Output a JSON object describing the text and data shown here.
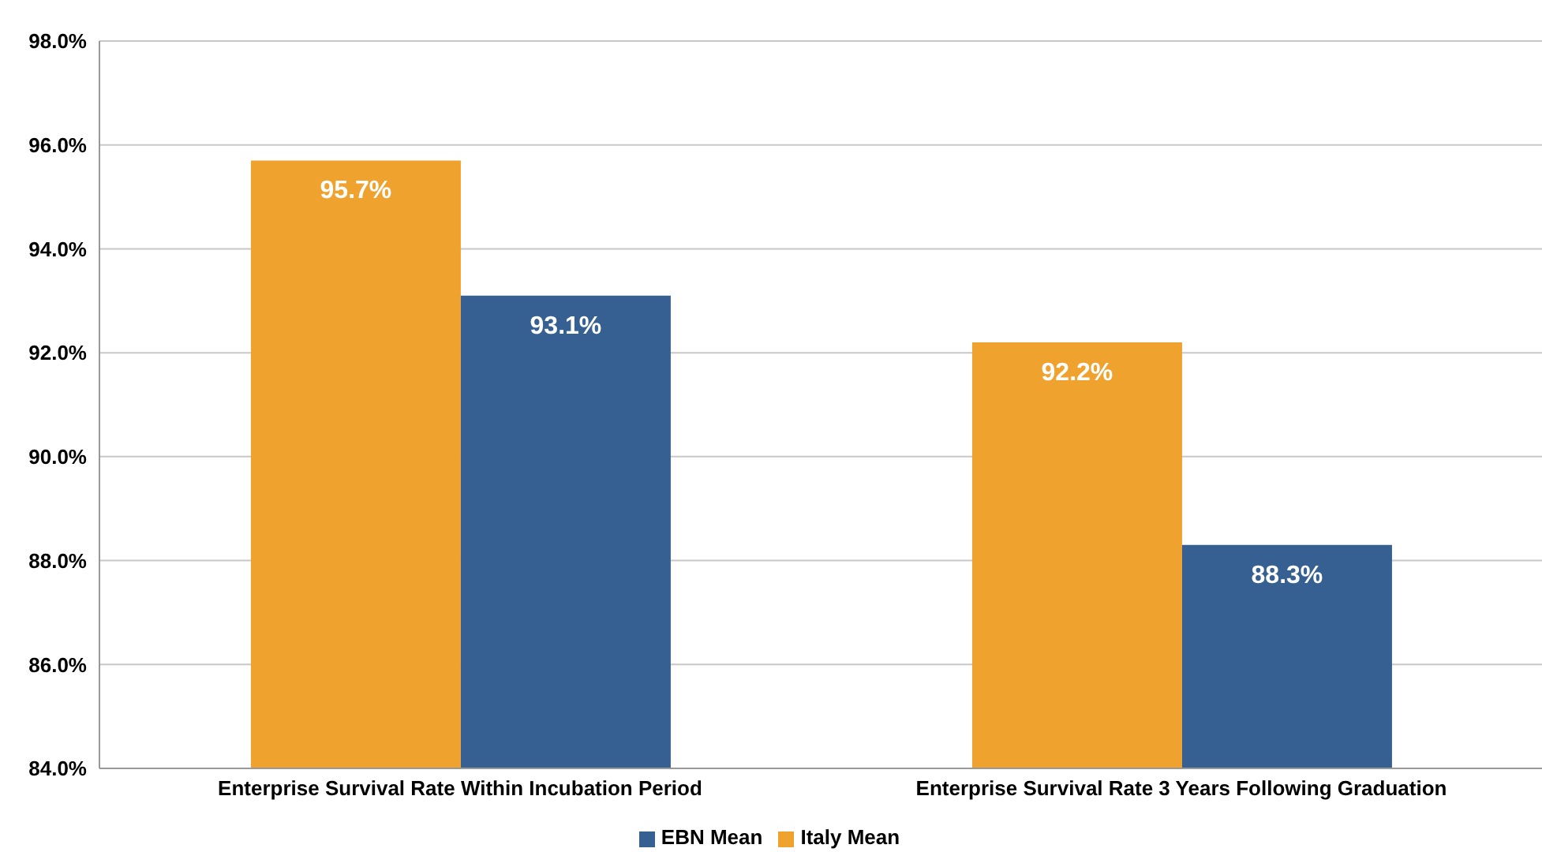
{
  "chart_data": {
    "type": "bar",
    "categories": [
      "Enterprise Survival Rate Within Incubation Period",
      "Enterprise Survival Rate 3 Years Following Graduation"
    ],
    "series": [
      {
        "name": "Italy Mean",
        "color": "#f0a22e",
        "values": [
          95.7,
          92.2
        ],
        "value_labels": [
          "95.7%",
          "92.2%"
        ]
      },
      {
        "name": "EBN Mean",
        "color": "#376092",
        "values": [
          93.1,
          88.3
        ],
        "value_labels": [
          "93.1%",
          "88.3%"
        ]
      }
    ],
    "ylim": [
      84,
      98
    ],
    "yticks": [
      {
        "value": 84,
        "label": "84.0%"
      },
      {
        "value": 86,
        "label": "86.0%"
      },
      {
        "value": 88,
        "label": "88.0%"
      },
      {
        "value": 90,
        "label": "90.0%"
      },
      {
        "value": 92,
        "label": "92.0%"
      },
      {
        "value": 94,
        "label": "94.0%"
      },
      {
        "value": 96,
        "label": "96.0%"
      },
      {
        "value": 98,
        "label": "98.0%"
      }
    ],
    "grid": "y",
    "legend": "bottom"
  }
}
